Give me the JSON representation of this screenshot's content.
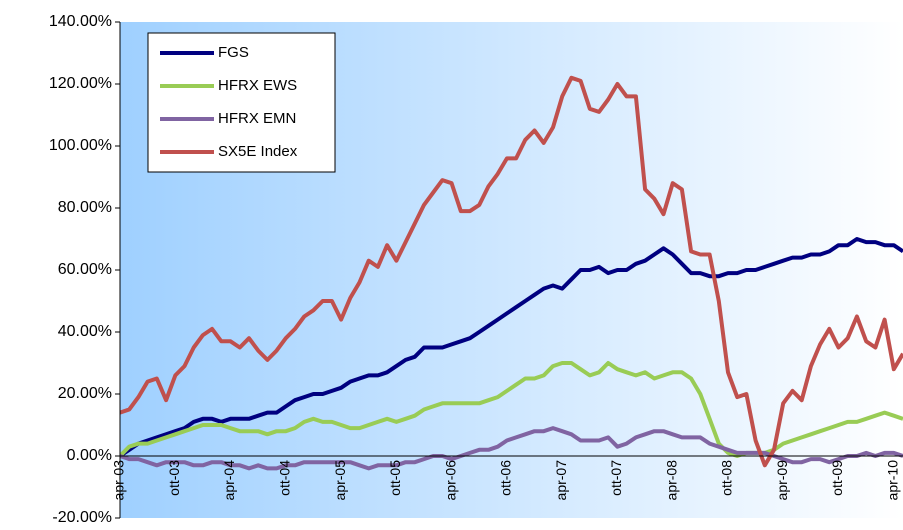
{
  "chart_data": {
    "type": "line",
    "categories": [
      "apr-03",
      null,
      null,
      null,
      null,
      null,
      "ott-03",
      null,
      null,
      null,
      null,
      null,
      "apr-04",
      null,
      null,
      null,
      null,
      null,
      "ott-04",
      null,
      null,
      null,
      null,
      null,
      "apr-05",
      null,
      null,
      null,
      null,
      null,
      "ott-05",
      null,
      null,
      null,
      null,
      null,
      "apr-06",
      null,
      null,
      null,
      null,
      null,
      "ott-06",
      null,
      null,
      null,
      null,
      null,
      "apr-07",
      null,
      null,
      null,
      null,
      null,
      "ott-07",
      null,
      null,
      null,
      null,
      null,
      "apr-08",
      null,
      null,
      null,
      null,
      null,
      "ott-08",
      null,
      null,
      null,
      null,
      null,
      "apr-09",
      null,
      null,
      null,
      null,
      null,
      "ott-09",
      null,
      null,
      null,
      null,
      null,
      "apr-10",
      null
    ],
    "series": [
      {
        "name": "FGS",
        "color": "#000080",
        "values": [
          0,
          2,
          4,
          5,
          6,
          7,
          8,
          9,
          11,
          12,
          12,
          11,
          12,
          12,
          12,
          13,
          14,
          14,
          16,
          18,
          19,
          20,
          20,
          21,
          22,
          24,
          25,
          26,
          26,
          27,
          29,
          31,
          32,
          35,
          35,
          35,
          36,
          37,
          38,
          40,
          42,
          44,
          46,
          48,
          50,
          52,
          54,
          55,
          54,
          57,
          60,
          60,
          61,
          59,
          60,
          60,
          62,
          63,
          65,
          67,
          65,
          62,
          59,
          59,
          58,
          58,
          59,
          59,
          60,
          60,
          61,
          62,
          63,
          64,
          64,
          65,
          65,
          66,
          68,
          68,
          70,
          69,
          69,
          68,
          68,
          66
        ]
      },
      {
        "name": "HFRX EWS",
        "color": "#99cc55",
        "values": [
          0,
          3,
          4,
          4,
          5,
          6,
          7,
          8,
          9,
          10,
          10,
          10,
          9,
          8,
          8,
          8,
          7,
          8,
          8,
          9,
          11,
          12,
          11,
          11,
          10,
          9,
          9,
          10,
          11,
          12,
          11,
          12,
          13,
          15,
          16,
          17,
          17,
          17,
          17,
          17,
          18,
          19,
          21,
          23,
          25,
          25,
          26,
          29,
          30,
          30,
          28,
          26,
          27,
          30,
          28,
          27,
          26,
          27,
          25,
          26,
          27,
          27,
          25,
          20,
          12,
          4,
          1,
          0,
          1,
          1,
          1,
          2,
          4,
          5,
          6,
          7,
          8,
          9,
          10,
          11,
          11,
          12,
          13,
          14,
          13,
          12
        ]
      },
      {
        "name": "HFRX EMN",
        "color": "#8064a2",
        "values": [
          0,
          -1,
          -1,
          -2,
          -3,
          -2,
          -2,
          -2,
          -3,
          -3,
          -2,
          -2,
          -3,
          -3,
          -4,
          -3,
          -4,
          -4,
          -3,
          -3,
          -2,
          -2,
          -2,
          -2,
          -2,
          -2,
          -3,
          -4,
          -3,
          -3,
          -3,
          -2,
          -2,
          -1,
          0,
          0,
          -1,
          0,
          1,
          2,
          2,
          3,
          5,
          6,
          7,
          8,
          8,
          9,
          8,
          7,
          5,
          5,
          5,
          6,
          3,
          4,
          6,
          7,
          8,
          8,
          7,
          6,
          6,
          6,
          4,
          3,
          2,
          1,
          1,
          1,
          1,
          0,
          -1,
          -2,
          -2,
          -1,
          -1,
          -2,
          -1,
          0,
          0,
          1,
          0,
          1,
          1,
          0
        ]
      },
      {
        "name": "SX5E Index",
        "color": "#c0504d",
        "values": [
          14,
          15,
          19,
          24,
          25,
          18,
          26,
          29,
          35,
          39,
          41,
          37,
          37,
          35,
          38,
          34,
          31,
          34,
          38,
          41,
          45,
          47,
          50,
          50,
          44,
          51,
          56,
          63,
          61,
          68,
          63,
          69,
          75,
          81,
          85,
          89,
          88,
          79,
          79,
          81,
          87,
          91,
          96,
          96,
          102,
          105,
          101,
          106,
          116,
          122,
          121,
          112,
          111,
          115,
          120,
          116,
          116,
          86,
          83,
          78,
          88,
          86,
          66,
          65,
          65,
          50,
          27,
          19,
          20,
          5,
          -3,
          2,
          17,
          21,
          18,
          29,
          36,
          41,
          35,
          38,
          45,
          37,
          35,
          44,
          28,
          33
        ]
      }
    ],
    "ylim": [
      -20,
      140
    ],
    "yticks": [
      {
        "value": -20,
        "label": "-20.00%"
      },
      {
        "value": 0,
        "label": "0.00%"
      },
      {
        "value": 20,
        "label": "20.00%"
      },
      {
        "value": 40,
        "label": "40.00%"
      },
      {
        "value": 60,
        "label": "60.00%"
      },
      {
        "value": 80,
        "label": "80.00%"
      },
      {
        "value": 100,
        "label": "100.00%"
      },
      {
        "value": 120,
        "label": "120.00%"
      },
      {
        "value": 140,
        "label": "140.00%"
      }
    ],
    "legend": "top-left"
  }
}
